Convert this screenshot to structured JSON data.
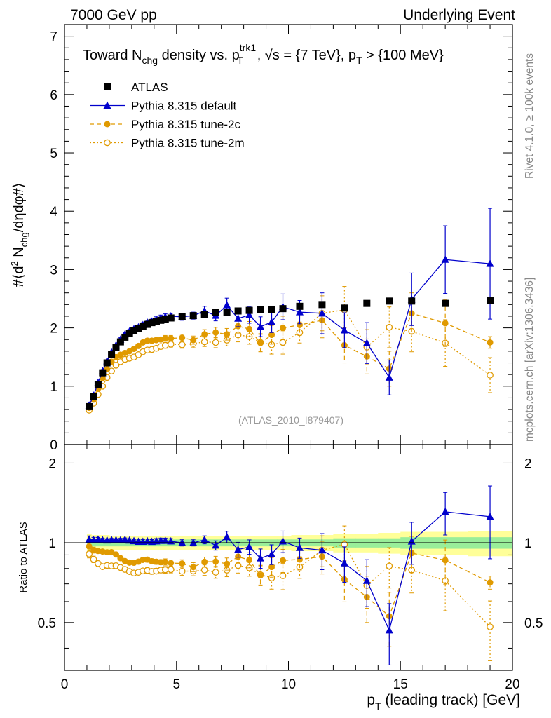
{
  "header": {
    "left": "7000 GeV pp",
    "right": "Underlying Event",
    "side_top": "Rivet 4.1.0, ≥ 100k events",
    "side_bottom": "mcplots.cern.ch [arXiv:1306.3436]",
    "watermark": "(ATLAS_2010_I879407)"
  },
  "colors": {
    "atlas": "#000000",
    "default": "#0000cc",
    "tune2c": "#e09a00",
    "tune2m": "#e09a00",
    "band_inner": "#99ee99",
    "band_outer": "#ffff99"
  },
  "chart_data": {
    "type": "scatter",
    "title": "Toward N_chg density vs. p_T^trk1, √s = {7 TeV}, p_T > {100 MeV}",
    "xlabel": "p_T (leading track) [GeV]",
    "ylabel": "#〈d² N_chg/dηdφ#〉",
    "ratio_ylabel": "Ratio to ATLAS",
    "xlim": [
      0,
      20
    ],
    "ylim": [
      0,
      7.2
    ],
    "ratio_ylim": [
      0.33,
      2.35
    ],
    "x_ticks": [
      "0",
      "5",
      "10",
      "15",
      "20"
    ],
    "y_ticks": [
      "0",
      "1",
      "2",
      "3",
      "4",
      "5",
      "6",
      "7"
    ],
    "ratio_ticks": [
      "0.5",
      "1",
      "2"
    ],
    "legend_position": "top-left",
    "x": [
      1.1,
      1.3,
      1.5,
      1.7,
      1.9,
      2.1,
      2.3,
      2.5,
      2.7,
      2.9,
      3.1,
      3.3,
      3.5,
      3.7,
      3.9,
      4.1,
      4.3,
      4.5,
      4.75,
      5.25,
      5.75,
      6.25,
      6.75,
      7.25,
      7.75,
      8.25,
      8.75,
      9.25,
      9.75,
      10.5,
      11.5,
      12.5,
      13.5,
      14.5,
      15.5,
      17.0,
      19.0
    ],
    "series": [
      {
        "name": "ATLAS",
        "values": [
          0.65,
          0.82,
          1.03,
          1.23,
          1.4,
          1.54,
          1.66,
          1.76,
          1.84,
          1.9,
          1.95,
          1.99,
          2.03,
          2.06,
          2.09,
          2.11,
          2.13,
          2.15,
          2.17,
          2.19,
          2.21,
          2.23,
          2.26,
          2.27,
          2.29,
          2.3,
          2.31,
          2.32,
          2.33,
          2.37,
          2.4,
          2.34,
          2.42,
          2.46,
          2.46,
          2.42,
          2.47
        ],
        "errors": [
          0,
          0,
          0,
          0,
          0,
          0,
          0,
          0,
          0,
          0,
          0,
          0,
          0,
          0,
          0,
          0,
          0,
          0,
          0,
          0,
          0,
          0,
          0,
          0,
          0,
          0,
          0,
          0,
          0,
          0,
          0,
          0,
          0,
          0,
          0,
          0,
          0
        ]
      },
      {
        "name": "Pythia 8.315 default",
        "values": [
          0.67,
          0.84,
          1.06,
          1.26,
          1.43,
          1.58,
          1.7,
          1.8,
          1.89,
          1.94,
          1.98,
          2.01,
          2.05,
          2.09,
          2.11,
          2.14,
          2.17,
          2.19,
          2.2,
          2.19,
          2.21,
          2.29,
          2.21,
          2.39,
          2.16,
          2.22,
          2.02,
          2.1,
          2.36,
          2.27,
          2.25,
          1.96,
          1.74,
          1.15,
          2.49,
          3.17,
          3.1
        ],
        "errors": [
          0.02,
          0.02,
          0.02,
          0.02,
          0.02,
          0.02,
          0.02,
          0.03,
          0.03,
          0.03,
          0.03,
          0.03,
          0.04,
          0.04,
          0.04,
          0.05,
          0.05,
          0.05,
          0.05,
          0.06,
          0.06,
          0.08,
          0.09,
          0.12,
          0.14,
          0.14,
          0.17,
          0.18,
          0.22,
          0.2,
          0.35,
          0.3,
          0.35,
          0.3,
          0.45,
          0.58,
          0.95
        ]
      },
      {
        "name": "Pythia 8.315 tune-2c",
        "values": [
          0.63,
          0.77,
          0.96,
          1.14,
          1.29,
          1.42,
          1.5,
          1.54,
          1.57,
          1.6,
          1.64,
          1.69,
          1.75,
          1.78,
          1.78,
          1.79,
          1.8,
          1.82,
          1.82,
          1.83,
          1.79,
          1.89,
          1.92,
          1.89,
          2.03,
          1.98,
          1.74,
          1.88,
          2.0,
          2.05,
          2.13,
          1.7,
          1.51,
          1.3,
          2.25,
          2.08,
          1.75
        ],
        "errors": [
          0.02,
          0.02,
          0.02,
          0.02,
          0.02,
          0.02,
          0.02,
          0.02,
          0.02,
          0.03,
          0.03,
          0.03,
          0.03,
          0.04,
          0.04,
          0.04,
          0.04,
          0.05,
          0.05,
          0.06,
          0.07,
          0.08,
          0.09,
          0.1,
          0.12,
          0.13,
          0.15,
          0.16,
          0.2,
          0.18,
          0.3,
          0.3,
          0.3,
          0.3,
          0.35,
          0.4,
          0.1
        ]
      },
      {
        "name": "Pythia 8.315 tune-2m",
        "values": [
          0.59,
          0.71,
          0.86,
          1.0,
          1.15,
          1.26,
          1.36,
          1.42,
          1.46,
          1.48,
          1.5,
          1.54,
          1.59,
          1.62,
          1.63,
          1.65,
          1.68,
          1.7,
          1.72,
          1.71,
          1.73,
          1.76,
          1.75,
          1.79,
          1.88,
          1.85,
          1.75,
          1.71,
          1.75,
          1.92,
          2.25,
          2.31,
          1.67,
          2.01,
          1.94,
          1.74,
          1.19
        ],
        "errors": [
          0.02,
          0.02,
          0.02,
          0.02,
          0.02,
          0.02,
          0.02,
          0.02,
          0.02,
          0.03,
          0.03,
          0.03,
          0.03,
          0.04,
          0.04,
          0.04,
          0.04,
          0.05,
          0.05,
          0.06,
          0.07,
          0.08,
          0.09,
          0.1,
          0.12,
          0.13,
          0.15,
          0.16,
          0.2,
          0.18,
          0.3,
          0.4,
          0.3,
          0.35,
          0.35,
          0.4,
          0.3
        ]
      }
    ],
    "ratio_band": {
      "inner": [
        0.03,
        0.03,
        0.03,
        0.03,
        0.03,
        0.03,
        0.03,
        0.03,
        0.03,
        0.03,
        0.03,
        0.03,
        0.03,
        0.03,
        0.03,
        0.03,
        0.03,
        0.03,
        0.03,
        0.03,
        0.03,
        0.03,
        0.03,
        0.03,
        0.03,
        0.03,
        0.03,
        0.03,
        0.03,
        0.03,
        0.03,
        0.04,
        0.04,
        0.04,
        0.05,
        0.05,
        0.05
      ],
      "outer": [
        0.08,
        0.07,
        0.07,
        0.07,
        0.07,
        0.06,
        0.06,
        0.06,
        0.06,
        0.06,
        0.06,
        0.06,
        0.06,
        0.06,
        0.06,
        0.06,
        0.06,
        0.06,
        0.06,
        0.06,
        0.06,
        0.06,
        0.06,
        0.06,
        0.06,
        0.06,
        0.06,
        0.06,
        0.06,
        0.07,
        0.07,
        0.08,
        0.08,
        0.09,
        0.1,
        0.1,
        0.11
      ]
    }
  }
}
